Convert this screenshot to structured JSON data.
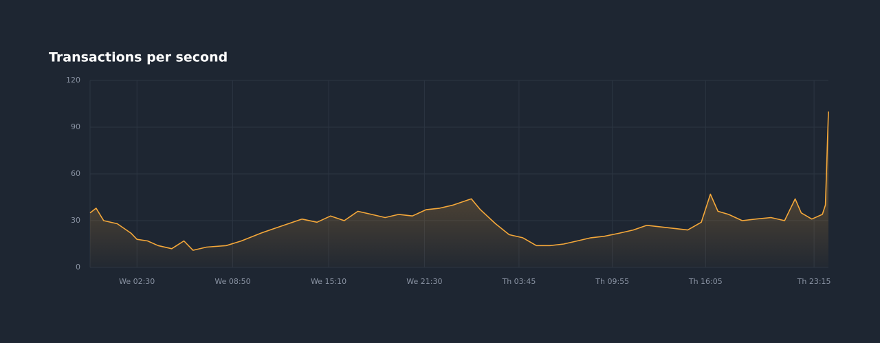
{
  "chart_data": {
    "type": "line",
    "title": "Transactions per second",
    "x": [
      -0.6,
      -0.2,
      0.3,
      1.2,
      2.1,
      2.5,
      3.2,
      3.9,
      4.8,
      5.6,
      6.2,
      7.1,
      8.4,
      9.4,
      10.7,
      11.6,
      12.5,
      13.4,
      14.4,
      15.3,
      16.2,
      17.1,
      18.0,
      18.9,
      19.8,
      20.7,
      21.6,
      22.5,
      23.4,
      24.6,
      25.2,
      26.2,
      27.1,
      28.0,
      28.9,
      29.8,
      30.7,
      31.6,
      32.5,
      33.4,
      34.4,
      35.3,
      36.2,
      37.1,
      38.0,
      38.9,
      39.8,
      40.4,
      40.9,
      41.6,
      42.5,
      43.4,
      44.4,
      45.3,
      46.0,
      46.4,
      47.1,
      47.8,
      48.0,
      48.2
    ],
    "values": [
      35,
      38,
      30,
      28,
      22,
      18,
      17,
      14,
      12,
      17,
      11,
      13,
      14,
      17,
      22,
      25,
      28,
      31,
      29,
      33,
      30,
      36,
      34,
      32,
      34,
      33,
      37,
      38,
      40,
      44,
      37,
      28,
      21,
      19,
      14,
      14,
      15,
      17,
      19,
      20,
      22,
      24,
      27,
      26,
      25,
      24,
      29,
      47,
      36,
      34,
      30,
      31,
      32,
      30,
      44,
      35,
      31,
      34,
      40,
      100
    ],
    "color": "#f5a83a",
    "xlim": [
      -0.6,
      48.2
    ],
    "xticks": [
      {
        "value": 2.5,
        "label": "We 02:30"
      },
      {
        "value": 8.83,
        "label": "We 08:50"
      },
      {
        "value": 15.17,
        "label": "We 15:10"
      },
      {
        "value": 21.5,
        "label": "We 21:30"
      },
      {
        "value": 27.75,
        "label": "Th 03:45"
      },
      {
        "value": 33.92,
        "label": "Th 09:55"
      },
      {
        "value": 40.08,
        "label": "Th 16:05"
      },
      {
        "value": 47.25,
        "label": "Th 23:15"
      }
    ],
    "ylim": [
      0,
      120
    ],
    "yticks": [
      0,
      30,
      60,
      90,
      120
    ],
    "grid": true
  }
}
